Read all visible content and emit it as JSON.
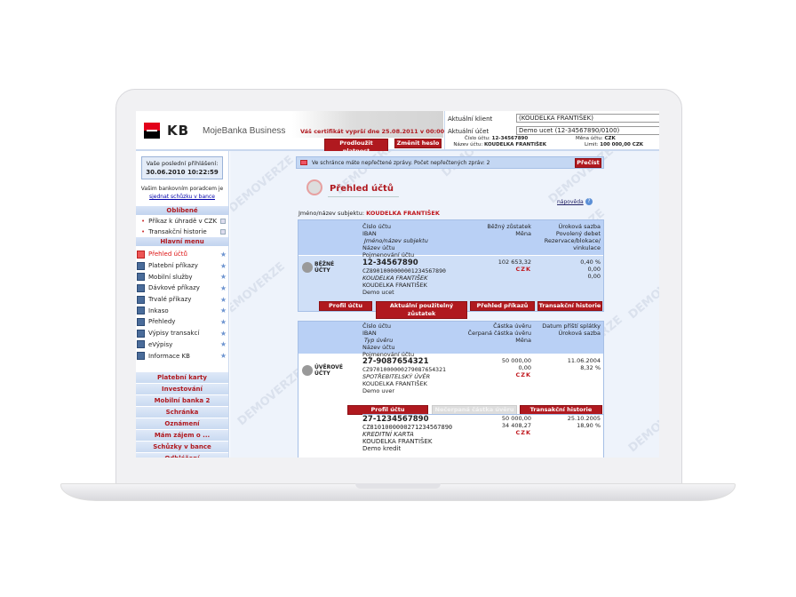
{
  "header": {
    "brand": "KB",
    "product": "MojeBanka Business",
    "certificate_warning": "Váš certifikát vyprší dne 25.08.2011 v 00:00",
    "extend_button": "Prodloužit platnost",
    "change_password_button": "Změnit heslo",
    "client_label": "Aktuální klient",
    "client_value": "(KOUDELKA FRANTIŠEK)",
    "account_label": "Aktuální účet",
    "account_value": "Demo ucet (12-34567890/0100)",
    "account_number_label": "Číslo účtu:",
    "account_number": "12-34567890",
    "account_name_label": "Název účtu:",
    "account_name": "KOUDELKA FRANTIŠEK",
    "currency_label": "Měna účtu:",
    "currency": "CZK",
    "limit_label": "Limit:",
    "limit": "100 000,00 CZK"
  },
  "sidebar": {
    "last_login_label": "Vaše poslední přihlášení:",
    "last_login": "30.06.2010 10:22:59",
    "advisor_text": "Vašim bankovním poradcem je",
    "advisor_link": "sjednat schůzku v bance",
    "favorites_title": "Oblíbené",
    "favorites": [
      "Příkaz k úhradě v CZK",
      "Transakční historie"
    ],
    "main_menu_title": "Hlavní menu",
    "menu": [
      "Přehled účtů",
      "Platební příkazy",
      "Mobilní služby",
      "Dávkové příkazy",
      "Trvalé příkazy",
      "Inkaso",
      "Přehledy",
      "Výpisy transakcí",
      "eVýpisy",
      "Informace KB"
    ],
    "sections": [
      "Platební karty",
      "Investování",
      "Mobilní banka 2",
      "Schránka",
      "Oznámení",
      "Mám zájem o ...",
      "Schůzky v bance",
      "Odhlášení"
    ]
  },
  "main": {
    "watermark": "DEMOVERZE",
    "message": "Ve schránce máte nepřečtené zprávy. Počet nepřečtených zpráv: 2",
    "read_button": "Přečíst",
    "title": "Přehled účtů",
    "help": "nápověda",
    "subject_label": "Jméno/název subjektu:",
    "subject": "KOUDELKA FRANTIŠEK",
    "current": {
      "category": "BĚŽNÉ ÚČTY",
      "headers": {
        "c1": [
          "Číslo účtu",
          "IBAN",
          "Jméno/název subjektu",
          "Název účtu",
          "Pojmenování účtu"
        ],
        "c2": [
          "Běžný zůstatek",
          "Měna"
        ],
        "c3": [
          "Úroková sazba",
          "Povolený debet",
          "Rezervace/blokace/",
          "vinkulace"
        ]
      },
      "account": {
        "number": "12-34567890",
        "iban": "CZ8901000000001234567890",
        "holder": "KOUDELKA FRANTIŠEK",
        "name": "KOUDELKA FRANTIŠEK",
        "alias": "Demo ucet",
        "balance": "102 653,32",
        "currency": "CZK",
        "rate": "0,40 %",
        "debit": "0,00",
        "blocked": "0,00"
      },
      "buttons": [
        "Profil účtu",
        "Aktuální použitelný zůstatek",
        "Přehled příkazů",
        "Transakční historie"
      ]
    },
    "loans": {
      "category": "ÚVĚROVÉ ÚČTY",
      "headers": {
        "c1": [
          "Číslo účtu",
          "IBAN",
          "Typ úvěru",
          "Název účtu",
          "Pojmenování účtu"
        ],
        "c2": [
          "Částka úvěru",
          "Čerpaná částka úvěru",
          "Měna"
        ],
        "c3": [
          "Datum příští splátky",
          "Úroková sazba"
        ]
      },
      "accounts": [
        {
          "number": "27-9087654321",
          "iban": "CZ9701000000279087654321",
          "type": "SPOTŘEBITELSKÝ ÚVĚR",
          "name": "KOUDELKA FRANTIŠEK",
          "alias": "Demo uver",
          "amount": "50 000,00",
          "drawn": "0,00",
          "currency": "CZK",
          "next": "11.06.2004",
          "rate": "8,32 %"
        },
        {
          "number": "27-1234567890",
          "iban": "CZ8101000000271234567890",
          "type": "KREDITNÍ KARTA",
          "name": "KOUDELKA FRANTIŠEK",
          "alias": "Demo kredit",
          "amount": "50 000,00",
          "drawn": "34 408,27",
          "currency": "CZK",
          "next": "25.10.2005",
          "rate": "18,90 %"
        }
      ],
      "buttons": [
        "Profil účtu",
        "Nečerpaná částka úvěru",
        "Transakční historie"
      ]
    }
  }
}
